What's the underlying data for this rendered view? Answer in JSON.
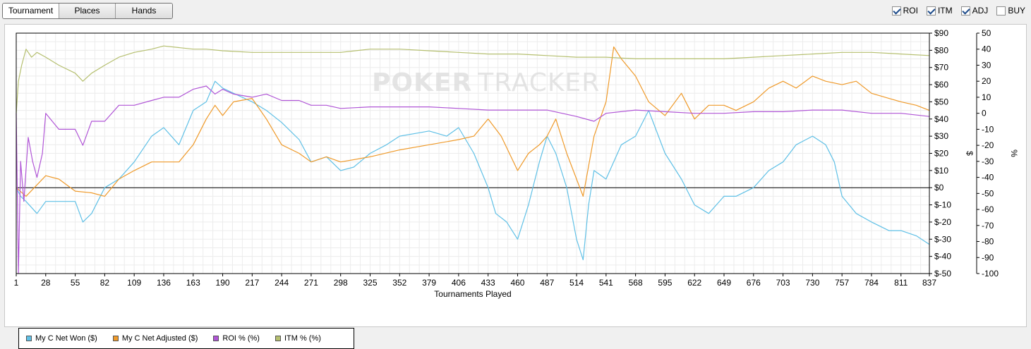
{
  "tabs": [
    {
      "label": "Tournament",
      "active": true
    },
    {
      "label": "Places",
      "active": false
    },
    {
      "label": "Hands",
      "active": false
    }
  ],
  "toggles": [
    {
      "label": "ROI",
      "checked": true
    },
    {
      "label": "ITM",
      "checked": true
    },
    {
      "label": "ADJ",
      "checked": true
    },
    {
      "label": "BUY",
      "checked": false
    }
  ],
  "watermark": {
    "part1": "PO",
    "part2": "KER",
    "part3": "TRACKER"
  },
  "chart_data": {
    "type": "line",
    "xlabel": "Tournaments Played",
    "ylabel_left": "$",
    "ylabel_right": "%",
    "xlim": [
      1,
      837
    ],
    "ylim_dollars": [
      -50,
      90
    ],
    "ylim_percent": [
      -100,
      50
    ],
    "x_ticks": [
      1,
      28,
      55,
      82,
      109,
      136,
      163,
      190,
      217,
      244,
      271,
      298,
      325,
      352,
      379,
      406,
      433,
      460,
      487,
      514,
      541,
      568,
      595,
      622,
      649,
      676,
      703,
      730,
      757,
      784,
      811,
      837
    ],
    "y_ticks_dollars": [
      "$90",
      "$80",
      "$70",
      "$60",
      "$50",
      "$40",
      "$30",
      "$20",
      "$10",
      "$0",
      "$-10",
      "$-20",
      "$-30",
      "$-40",
      "$-50"
    ],
    "y_ticks_percent": [
      "50",
      "40",
      "30",
      "20",
      "10",
      "0",
      "-10",
      "-20",
      "-30",
      "-40",
      "-50",
      "-60",
      "-70",
      "-80",
      "-90",
      "-100"
    ],
    "grid": true,
    "legend_position": "bottom-left",
    "series": [
      {
        "name": "My C Net Won ($)",
        "color": "#5fc0e6",
        "axis": "dollars",
        "x": [
          1,
          5,
          10,
          20,
          28,
          40,
          55,
          62,
          70,
          82,
          95,
          109,
          125,
          136,
          150,
          163,
          175,
          183,
          190,
          200,
          217,
          230,
          244,
          260,
          271,
          285,
          298,
          310,
          325,
          340,
          352,
          370,
          379,
          395,
          406,
          420,
          433,
          440,
          450,
          460,
          470,
          480,
          487,
          495,
          505,
          514,
          520,
          525,
          530,
          541,
          555,
          568,
          580,
          595,
          610,
          622,
          635,
          649,
          660,
          676,
          690,
          703,
          715,
          730,
          742,
          750,
          757,
          770,
          784,
          800,
          811,
          825,
          837
        ],
        "y": [
          0,
          -5,
          -8,
          -15,
          -8,
          -8,
          -8,
          -20,
          -15,
          0,
          5,
          15,
          30,
          35,
          25,
          45,
          50,
          62,
          58,
          55,
          50,
          45,
          38,
          28,
          15,
          18,
          10,
          12,
          20,
          25,
          30,
          32,
          33,
          30,
          35,
          20,
          0,
          -15,
          -20,
          -30,
          -10,
          15,
          30,
          20,
          0,
          -30,
          -42,
          -10,
          10,
          5,
          25,
          30,
          45,
          20,
          5,
          -10,
          -15,
          -5,
          -5,
          0,
          10,
          15,
          25,
          30,
          25,
          15,
          -5,
          -15,
          -20,
          -25,
          -25,
          -28,
          -33
        ]
      },
      {
        "name": "My C Net Adjusted ($)",
        "color": "#ef9a2a",
        "axis": "dollars",
        "x": [
          1,
          10,
          28,
          40,
          55,
          70,
          82,
          95,
          109,
          125,
          136,
          150,
          163,
          175,
          183,
          190,
          200,
          217,
          230,
          244,
          260,
          271,
          285,
          298,
          325,
          352,
          379,
          406,
          420,
          433,
          445,
          460,
          470,
          480,
          487,
          495,
          505,
          514,
          520,
          530,
          541,
          548,
          555,
          568,
          580,
          595,
          610,
          622,
          635,
          649,
          660,
          676,
          690,
          703,
          715,
          730,
          742,
          757,
          770,
          784,
          800,
          811,
          825,
          837
        ],
        "y": [
          0,
          -5,
          7,
          5,
          -2,
          -3,
          -5,
          5,
          10,
          15,
          15,
          15,
          25,
          40,
          48,
          42,
          50,
          52,
          40,
          25,
          20,
          15,
          18,
          15,
          18,
          22,
          25,
          28,
          30,
          40,
          30,
          10,
          20,
          25,
          30,
          40,
          20,
          5,
          -5,
          30,
          50,
          82,
          75,
          65,
          50,
          42,
          55,
          40,
          48,
          48,
          45,
          50,
          58,
          62,
          58,
          65,
          62,
          60,
          62,
          55,
          52,
          50,
          48,
          45
        ]
      },
      {
        "name": "ROI % (%)",
        "color": "#b055d6",
        "axis": "percent",
        "x": [
          1,
          3,
          5,
          8,
          12,
          16,
          20,
          25,
          28,
          40,
          55,
          62,
          70,
          82,
          95,
          109,
          125,
          136,
          150,
          163,
          175,
          183,
          190,
          200,
          217,
          230,
          244,
          260,
          271,
          285,
          298,
          325,
          352,
          379,
          406,
          433,
          460,
          487,
          514,
          530,
          541,
          568,
          595,
          622,
          649,
          676,
          703,
          730,
          757,
          784,
          811,
          837
        ],
        "y": [
          0,
          -100,
          -30,
          -55,
          -15,
          -30,
          -40,
          -25,
          0,
          -10,
          -10,
          -20,
          -5,
          -5,
          5,
          5,
          8,
          10,
          10,
          15,
          17,
          12,
          15,
          12,
          10,
          12,
          8,
          8,
          5,
          5,
          3,
          4,
          4,
          4,
          3,
          2,
          2,
          2,
          -2,
          -5,
          0,
          2,
          1,
          0,
          0,
          1,
          1,
          2,
          2,
          0,
          0,
          -2
        ]
      },
      {
        "name": "ITM % (%)",
        "color": "#b5bf6f",
        "axis": "percent",
        "x": [
          1,
          3,
          6,
          10,
          15,
          20,
          28,
          40,
          55,
          62,
          70,
          82,
          95,
          109,
          125,
          136,
          150,
          163,
          175,
          190,
          217,
          244,
          271,
          298,
          325,
          352,
          379,
          406,
          433,
          460,
          487,
          514,
          541,
          568,
          595,
          622,
          649,
          676,
          703,
          730,
          757,
          784,
          811,
          837
        ],
        "y": [
          0,
          20,
          30,
          40,
          35,
          38,
          35,
          30,
          25,
          20,
          25,
          30,
          35,
          38,
          40,
          42,
          41,
          40,
          40,
          39,
          38,
          38,
          38,
          38,
          40,
          40,
          39,
          38,
          37,
          37,
          36,
          35,
          35,
          34,
          34,
          34,
          34,
          35,
          36,
          37,
          38,
          38,
          37,
          36
        ]
      }
    ],
    "zero_line_dollars": 0
  }
}
